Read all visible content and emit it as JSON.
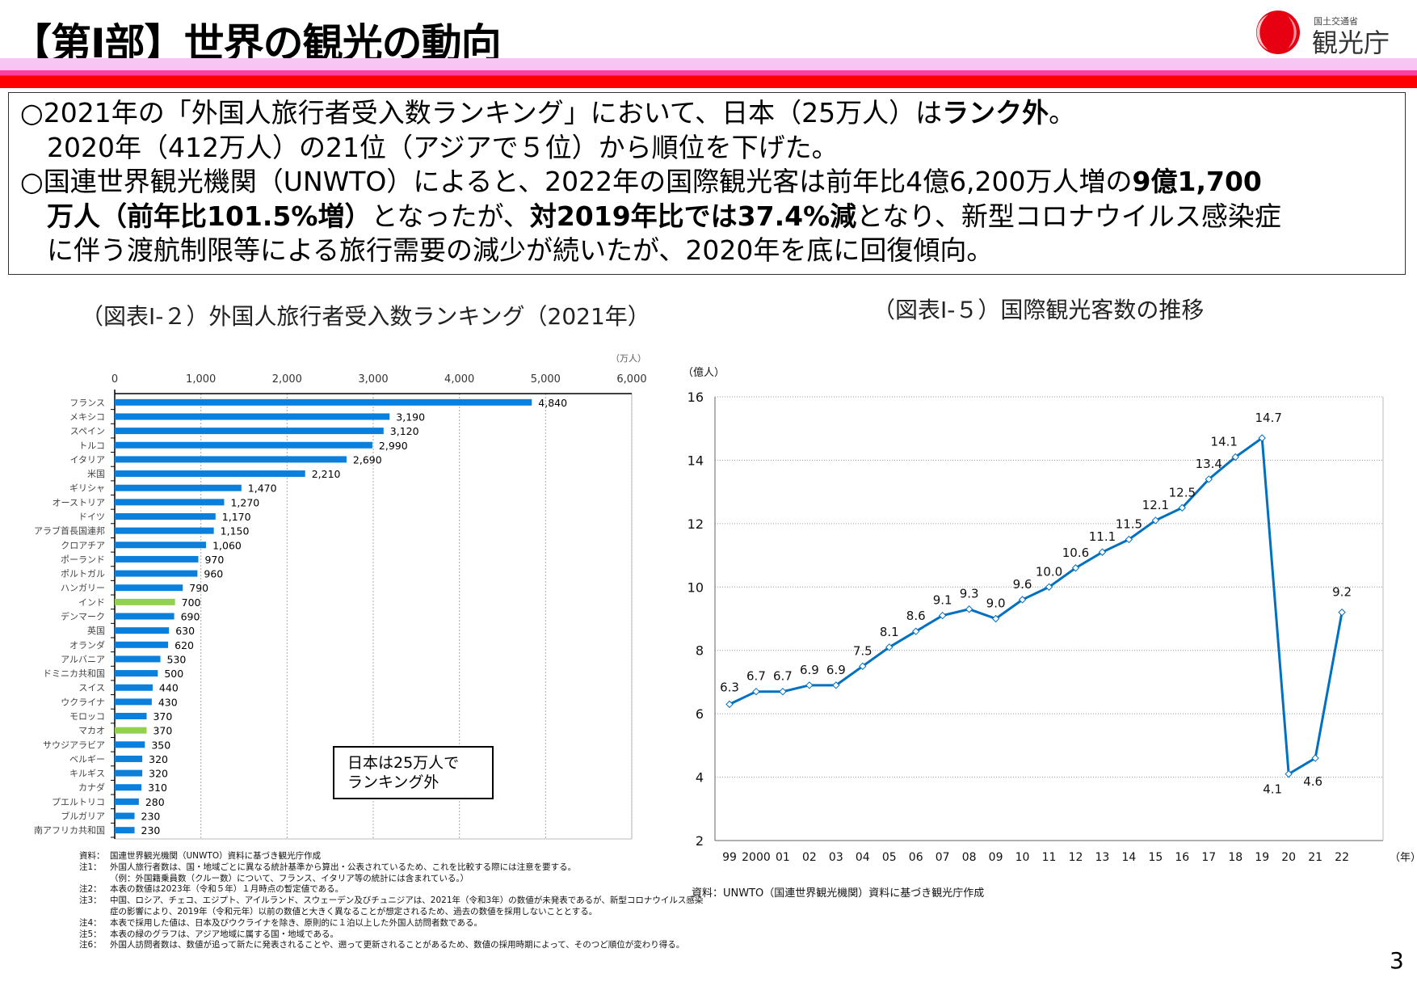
{
  "header": {
    "title": "【第Ⅰ部】世界の観光の動向",
    "logo": {
      "small_text": "国土交通省",
      "main_text": "観光庁",
      "colors": [
        "#e60012",
        "#ffffff"
      ]
    }
  },
  "summary": {
    "lines": [
      [
        {
          "text": "○2021年の「外国人旅行者受入数ランキング」において、日本（25万人）は"
        },
        {
          "text": "ランク外",
          "bold": true
        },
        {
          "text": "。"
        }
      ],
      [
        {
          "text": "　2020年（412万人）の21位（アジアで５位）から順位を下げた。"
        }
      ],
      [
        {
          "text": "○国連世界観光機関（UNWTO）によると、2022年の国際観光客は前年比4億6,200万人増の"
        },
        {
          "text": "9億1,700",
          "bold": true
        }
      ],
      [
        {
          "text": "　"
        },
        {
          "text": "万人（前年比101.5%増）",
          "bold": true
        },
        {
          "text": "となったが、"
        },
        {
          "text": "対2019年比では37.4%減",
          "bold": true
        },
        {
          "text": "となり、新型コロナウイルス感染症"
        }
      ],
      [
        {
          "text": "　に伴う渡航制限等による旅行需要の減少が続いたが、2020年を底に回復傾向。"
        }
      ]
    ]
  },
  "left_chart_title": "（図表Ⅰ-２）外国人旅行者受入数ランキング（2021年）",
  "right_chart_title": "（図表Ⅰ-５）国際観光客数の推移",
  "callout": {
    "line1": "日本は25万人で",
    "line2": "ランキング外"
  },
  "notes": [
    {
      "k": "資料：",
      "t": "国連世界観光機関（UNWTO）資料に基づき観光庁作成"
    },
    {
      "k": "注1：",
      "t": "外国人旅行者数は、国・地域ごとに異なる統計基準から算出・公表されているため、これを比較する際には注意を要する。"
    },
    {
      "k": "",
      "t": "（例：外国籍乗員数（クルー数）について、フランス、イタリア等の統計には含まれている。）"
    },
    {
      "k": "注2：",
      "t": "本表の数値は2023年（令和５年）１月時点の暫定値である。"
    },
    {
      "k": "注3：",
      "t": "中国、ロシア、チェコ、エジプト、アイルランド、スウェーデン及びチュニジアは、2021年（令和3年）の数値が未発表であるが、新型コロナウイルス感染"
    },
    {
      "k": "",
      "t": "症の影響により、2019年（令和元年）以前の数値と大きく異なることが想定されるため、過去の数値を採用しないこととする。"
    },
    {
      "k": "注4：",
      "t": "本表で採用した値は、日本及びウクライナを除き、原則的に１泊以上した外国人訪問者数である。"
    },
    {
      "k": "注5：",
      "t": "本表の緑のグラフは、アジア地域に属する国・地域である。"
    },
    {
      "k": "注6：",
      "t": "外国人訪問者数は、数値が追って新たに発表されることや、遡って更新されることがあるため、数値の採用時期によって、そのつど順位が変わり得る。"
    }
  ],
  "right_source": "資料：UNWTO（国連世界観光機関）資料に基づき観光庁作成",
  "page_number": "3",
  "chart_data": [
    {
      "type": "bar",
      "orientation": "horizontal",
      "unit_label": "（万人）",
      "xlim": [
        0,
        6000
      ],
      "ticks": [
        "0",
        "1,000",
        "2,000",
        "3,000",
        "4,000",
        "5,000",
        "6,000"
      ],
      "tick_values": [
        0,
        1000,
        2000,
        3000,
        4000,
        5000,
        6000
      ],
      "grid": true,
      "colors": {
        "default": "#0a7fdc",
        "asia": "#92d050"
      },
      "categories": [
        "フランス",
        "メキシコ",
        "スペイン",
        "トルコ",
        "イタリア",
        "米国",
        "ギリシャ",
        "オーストリア",
        "ドイツ",
        "アラブ首長国連邦",
        "クロアチア",
        "ポーランド",
        "ポルトガル",
        "ハンガリー",
        "インド",
        "デンマーク",
        "英国",
        "オランダ",
        "アルバニア",
        "ドミニカ共和国",
        "スイス",
        "ウクライナ",
        "モロッコ",
        "マカオ",
        "サウジアラビア",
        "ベルギー",
        "キルギス",
        "カナダ",
        "プエルトリコ",
        "ブルガリア",
        "南アフリカ共和国"
      ],
      "values": [
        4840,
        3190,
        3120,
        2990,
        2690,
        2210,
        1470,
        1270,
        1170,
        1150,
        1060,
        970,
        960,
        790,
        700,
        690,
        630,
        620,
        530,
        500,
        440,
        430,
        370,
        370,
        350,
        320,
        320,
        310,
        280,
        230,
        230
      ],
      "labels": [
        "4,840",
        "3,190",
        "3,120",
        "2,990",
        "2,690",
        "2,210",
        "1,470",
        "1,270",
        "1,170",
        "1,150",
        "1,060",
        "970",
        "960",
        "790",
        "700",
        "690",
        "630",
        "620",
        "530",
        "500",
        "440",
        "430",
        "370",
        "370",
        "350",
        "320",
        "320",
        "310",
        "280",
        "230",
        "230"
      ],
      "asia": [
        "インド",
        "マカオ"
      ]
    },
    {
      "type": "line",
      "ylabel": "（億人）",
      "xlabel": "（年）",
      "ylim": [
        2,
        16
      ],
      "yticks": [
        2,
        4,
        6,
        8,
        10,
        12,
        14,
        16
      ],
      "grid": true,
      "color": "#0070c0",
      "x": [
        "99",
        "2000",
        "01",
        "02",
        "03",
        "04",
        "05",
        "06",
        "07",
        "08",
        "09",
        "10",
        "11",
        "12",
        "13",
        "14",
        "15",
        "16",
        "17",
        "18",
        "19",
        "20",
        "21",
        "22"
      ],
      "values": [
        6.3,
        6.7,
        6.7,
        6.9,
        6.9,
        7.5,
        8.1,
        8.6,
        9.1,
        9.3,
        9.0,
        9.6,
        10.0,
        10.6,
        11.1,
        11.5,
        12.1,
        12.5,
        13.4,
        14.1,
        14.7,
        4.1,
        4.6,
        9.2
      ],
      "labels": [
        "6.3",
        "6.7",
        "6.7",
        "6.9",
        "6.9",
        "7.5",
        "8.1",
        "8.6",
        "9.1",
        "9.3",
        "9.0",
        "9.6",
        "10.0",
        "10.6",
        "11.1",
        "11.5",
        "12.1",
        "12.5",
        "13.4",
        "14.1",
        "14.7",
        "4.1",
        "4.6",
        "9.2"
      ]
    }
  ]
}
